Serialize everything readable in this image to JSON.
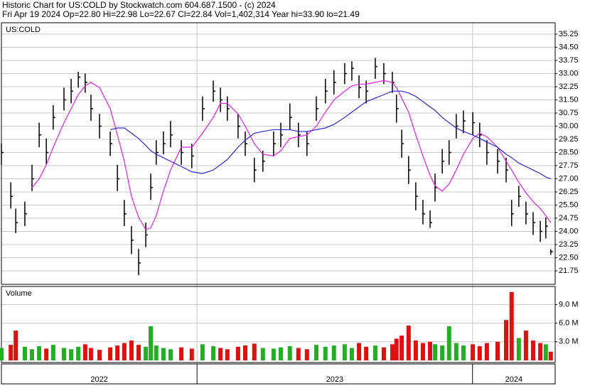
{
  "chart_data": {
    "type": "ohlc",
    "title": "Historic Chart for US:COLD by Stockwatch.com 604.687.1500 - (c) 2024",
    "subtitle": "Fri Apr 19 2024  Op=22.80  Hi=22.98  Lo=22.67  Cl=22.84  Vol=1,402,314  Year hi=33.90  lo=21.49",
    "symbol": "US:COLD",
    "volume_label": "Volume",
    "x": [
      2022.29,
      2022.324,
      2022.342,
      2022.375,
      2022.401,
      2022.427,
      2022.453,
      2022.478,
      2022.517,
      2022.543,
      2022.569,
      2022.594,
      2022.615,
      2022.646,
      2022.685,
      2022.711,
      2022.736,
      2022.762,
      2022.788,
      2022.814,
      2022.832,
      2022.852,
      2022.878,
      2022.904,
      2022.943,
      2022.981,
      2023.02,
      2023.059,
      2023.085,
      2023.11,
      2023.149,
      2023.175,
      2023.208,
      2023.239,
      2023.278,
      2023.304,
      2023.337,
      2023.368,
      2023.399,
      2023.433,
      2023.466,
      2023.497,
      2023.536,
      2023.562,
      2023.588,
      2023.614,
      2023.647,
      2023.678,
      2023.709,
      2023.724,
      2023.743,
      2023.768,
      2023.794,
      2023.82,
      2023.846,
      2023.864,
      2023.89,
      2023.915,
      2023.941,
      2023.967,
      2024.001,
      2024.026,
      2024.052,
      2024.091,
      2024.122,
      2024.142,
      2024.168,
      2024.194,
      2024.22,
      2024.246,
      2024.266,
      2024.284
    ],
    "close": [
      28.5,
      26,
      24.5,
      25,
      27,
      29.5,
      28.5,
      30.5,
      31.5,
      32,
      32.8,
      32.5,
      31,
      30,
      29,
      27,
      25,
      23.5,
      22.2,
      23.8,
      26.5,
      28.5,
      29,
      29.5,
      28.5,
      28.3,
      31,
      32,
      31.5,
      31,
      30,
      29,
      27.5,
      28,
      29,
      29.5,
      30.5,
      29.5,
      29,
      31,
      32,
      32.5,
      33,
      33.3,
      32.2,
      32,
      33.4,
      33,
      32.5,
      31,
      29,
      27.5,
      26,
      25,
      24.5,
      26.5,
      28,
      28.5,
      30,
      30.3,
      30.2,
      29.5,
      28.5,
      28,
      27.5,
      25,
      26,
      25,
      24.5,
      24,
      24.3,
      22.84
    ],
    "high": [
      29.0,
      26.8,
      25.3,
      25.7,
      27.8,
      30.2,
      29.3,
      31.2,
      32.2,
      32.7,
      33.1,
      33.0,
      31.8,
      30.7,
      29.7,
      27.8,
      25.8,
      24.3,
      23.0,
      24.5,
      27.3,
      29.2,
      29.7,
      30.3,
      29.2,
      29.0,
      31.7,
      32.6,
      32.2,
      31.7,
      30.7,
      29.7,
      28.2,
      28.6,
      29.7,
      30.2,
      31.3,
      30.2,
      29.7,
      31.7,
      32.7,
      33.2,
      33.6,
      33.7,
      32.9,
      32.6,
      33.9,
      33.6,
      33.1,
      31.8,
      29.8,
      28.3,
      26.8,
      25.8,
      25.2,
      27.3,
      28.7,
      29.2,
      30.7,
      30.9,
      30.8,
      30.2,
      29.2,
      28.7,
      28.2,
      25.8,
      26.6,
      25.7,
      25.1,
      24.6,
      24.8,
      22.98
    ],
    "low": [
      27.8,
      25.3,
      23.9,
      24.3,
      26.3,
      28.8,
      27.8,
      29.8,
      30.9,
      31.3,
      32.2,
      31.9,
      30.3,
      29.3,
      28.3,
      26.3,
      24.3,
      22.7,
      21.5,
      23.1,
      25.8,
      27.8,
      28.4,
      28.8,
      27.8,
      27.6,
      30.3,
      31.4,
      30.8,
      30.3,
      29.3,
      28.3,
      26.8,
      27.4,
      28.3,
      28.8,
      29.8,
      28.8,
      28.3,
      30.3,
      31.3,
      31.8,
      32.4,
      32.6,
      31.6,
      31.3,
      32.7,
      32.4,
      31.9,
      30.2,
      28.2,
      26.7,
      25.2,
      24.4,
      24.2,
      25.7,
      27.3,
      27.8,
      29.3,
      29.6,
      29.5,
      28.8,
      27.8,
      27.3,
      26.8,
      24.3,
      25.4,
      24.4,
      23.8,
      23.4,
      23.6,
      22.67
    ],
    "volume": [
      2.0,
      2.5,
      4.8,
      2.2,
      1.8,
      2.3,
      1.9,
      2.5,
      2.0,
      1.8,
      2.2,
      2.6,
      2.0,
      1.7,
      2.1,
      2.4,
      2.8,
      3.2,
      2.5,
      2.2,
      5.5,
      2.4,
      2.0,
      1.8,
      2.1,
      1.9,
      2.6,
      2.3,
      2.0,
      1.8,
      2.2,
      2.4,
      2.7,
      2.0,
      1.9,
      2.1,
      2.3,
      2.0,
      1.8,
      2.5,
      2.2,
      2.4,
      2.6,
      2.0,
      2.8,
      2.2,
      2.4,
      2.1,
      2.6,
      3.5,
      4.0,
      5.6,
      3.2,
      2.8,
      3.0,
      2.6,
      2.4,
      5.5,
      2.8,
      2.4,
      2.6,
      2.3,
      2.8,
      3.0,
      6.5,
      11.0,
      3.6,
      4.8,
      3.2,
      2.8,
      2.6,
      1.4
    ],
    "moving_averages": [
      {
        "color": "#e020e0",
        "values": [
          null,
          null,
          null,
          null,
          26.5,
          27.0,
          27.8,
          28.8,
          30.2,
          31.0,
          31.8,
          32.3,
          32.5,
          32.2,
          31.0,
          29.5,
          28.0,
          26.0,
          24.8,
          24.1,
          24.2,
          24.9,
          26.3,
          27.5,
          28.8,
          28.8,
          29.6,
          30.5,
          31.3,
          31.3,
          30.7,
          30.0,
          29.0,
          28.4,
          28.3,
          28.6,
          29.3,
          29.4,
          29.5,
          30.0,
          30.8,
          31.5,
          32.0,
          32.3,
          32.4,
          32.4,
          32.5,
          32.6,
          32.5,
          32.2,
          31.6,
          30.8,
          29.5,
          28.3,
          27.2,
          26.6,
          26.3,
          26.7,
          27.5,
          28.4,
          29.3,
          29.6,
          29.4,
          28.8,
          28.0,
          27.5,
          26.8,
          26.2,
          25.7,
          25.3,
          24.9,
          24.5
        ]
      },
      {
        "color": "#2a2ac8",
        "values": [
          null,
          null,
          null,
          null,
          null,
          null,
          null,
          null,
          null,
          null,
          null,
          null,
          null,
          null,
          29.8,
          29.9,
          29.9,
          29.6,
          29.3,
          28.9,
          28.6,
          28.4,
          28.2,
          28.0,
          27.7,
          27.4,
          27.3,
          27.5,
          27.8,
          28.1,
          28.8,
          29.2,
          29.6,
          29.7,
          29.8,
          29.8,
          29.8,
          29.7,
          29.7,
          29.8,
          29.9,
          30.1,
          30.5,
          30.8,
          31.1,
          31.4,
          31.6,
          31.8,
          32.0,
          32.0,
          32.0,
          31.9,
          31.7,
          31.4,
          31.1,
          30.9,
          30.5,
          30.2,
          29.9,
          29.7,
          29.5,
          29.3,
          29.1,
          28.8,
          28.4,
          28.2,
          27.9,
          27.7,
          27.5,
          27.3,
          27.1,
          27.0
        ]
      }
    ],
    "bar_color": "#000000",
    "up_color": "#22b022",
    "down_color": "#e01010",
    "grid": true,
    "xlim": [
      2022.29,
      2024.3
    ],
    "xticks": [
      2023,
      2024
    ],
    "year_labels": [
      2022,
      2023,
      2024
    ],
    "ylim": [
      20.98,
      35.9
    ],
    "yticks": [
      35.25,
      {
        "value": 34.5,
        "label": "34.50"
      },
      33.75,
      {
        "value": 33,
        "label": "33.00"
      },
      32.25,
      {
        "value": 31.5,
        "label": "31.50"
      },
      30.75,
      {
        "value": 30,
        "label": "30.00"
      },
      29.25,
      {
        "value": 28.5,
        "label": "28.50"
      },
      27.75,
      {
        "value": 27,
        "label": "27.00"
      },
      26.25,
      {
        "value": 25.5,
        "label": "25.50"
      },
      24.75,
      {
        "value": 24,
        "label": "24.00"
      },
      23.25,
      {
        "value": 22.5,
        "label": "22.50"
      },
      21.75
    ],
    "volume_ylim": [
      0,
      11.9
    ],
    "volume_yticks": [
      {
        "value": 3,
        "label": "3.0 M"
      },
      {
        "value": 6,
        "label": "6.0 M"
      },
      {
        "value": 9,
        "label": "9.0 M"
      }
    ]
  }
}
